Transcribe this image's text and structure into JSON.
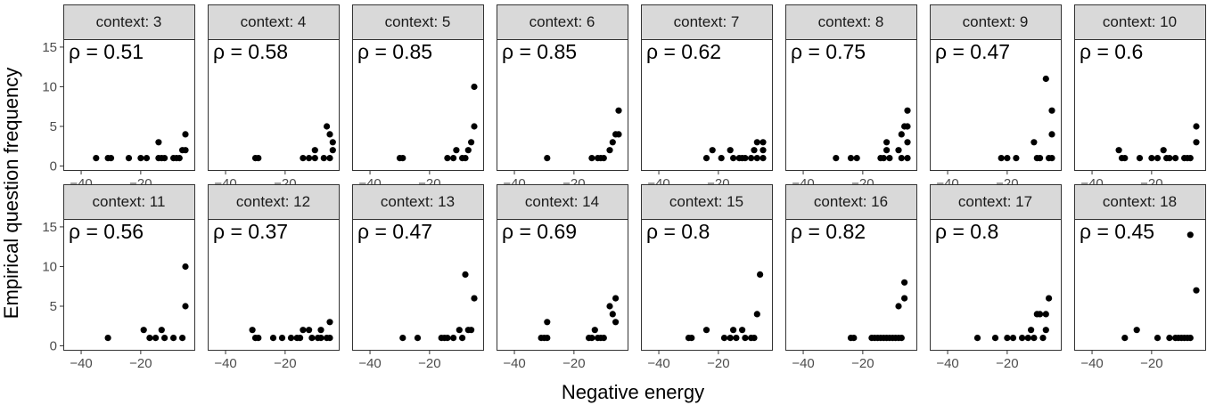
{
  "chart_data": {
    "type": "scatter",
    "facet_layout": "2 rows x 8 columns",
    "xlabel": "Negative energy",
    "ylabel": "Empirical question frequency",
    "xlim": [
      -46,
      -2
    ],
    "ylim": [
      -0.5,
      16
    ],
    "x_ticks": [
      -40,
      -20
    ],
    "x_tick_labels": [
      "−40",
      "−20"
    ],
    "y_ticks": [
      0,
      5,
      10,
      15
    ],
    "y_tick_labels": [
      "0",
      "5",
      "10",
      "15"
    ],
    "rho_prefix": "ρ = ",
    "point_color": "#000000",
    "strip_fill": "#d9d9d9",
    "panels": [
      {
        "strip": "context: 3",
        "rho": "0.51",
        "points": [
          [
            -35,
            1
          ],
          [
            -31,
            1
          ],
          [
            -30,
            1
          ],
          [
            -24,
            1
          ],
          [
            -20,
            1
          ],
          [
            -18,
            1
          ],
          [
            -14,
            3
          ],
          [
            -14,
            1
          ],
          [
            -13,
            1
          ],
          [
            -12,
            1
          ],
          [
            -9,
            1
          ],
          [
            -8,
            1
          ],
          [
            -7,
            1
          ],
          [
            -6,
            2
          ],
          [
            -5,
            2
          ],
          [
            -5,
            4
          ]
        ]
      },
      {
        "strip": "context: 4",
        "rho": "0.58",
        "points": [
          [
            -30,
            1
          ],
          [
            -29,
            1
          ],
          [
            -14,
            1
          ],
          [
            -12,
            1
          ],
          [
            -10,
            2
          ],
          [
            -10,
            1
          ],
          [
            -7,
            1
          ],
          [
            -6,
            5
          ],
          [
            -5,
            4
          ],
          [
            -4,
            3
          ],
          [
            -4,
            2
          ],
          [
            -5,
            1
          ]
        ]
      },
      {
        "strip": "context: 5",
        "rho": "0.85",
        "points": [
          [
            -30,
            1
          ],
          [
            -29,
            1
          ],
          [
            -14,
            1
          ],
          [
            -12,
            1
          ],
          [
            -11,
            2
          ],
          [
            -9,
            1
          ],
          [
            -8,
            1
          ],
          [
            -7,
            2
          ],
          [
            -6,
            3
          ],
          [
            -5,
            10
          ],
          [
            -5,
            5
          ]
        ]
      },
      {
        "strip": "context: 6",
        "rho": "0.85",
        "points": [
          [
            -29,
            1
          ],
          [
            -14,
            1
          ],
          [
            -12,
            1
          ],
          [
            -11,
            1
          ],
          [
            -10,
            1
          ],
          [
            -8,
            2
          ],
          [
            -7,
            3
          ],
          [
            -6,
            4
          ],
          [
            -5,
            7
          ],
          [
            -5,
            4
          ]
        ]
      },
      {
        "strip": "context: 7",
        "rho": "0.62",
        "points": [
          [
            -24,
            1
          ],
          [
            -22,
            2
          ],
          [
            -19,
            1
          ],
          [
            -16,
            2
          ],
          [
            -15,
            1
          ],
          [
            -13,
            1
          ],
          [
            -12,
            1
          ],
          [
            -11,
            1
          ],
          [
            -9,
            1
          ],
          [
            -8,
            2
          ],
          [
            -7,
            3
          ],
          [
            -7,
            1
          ],
          [
            -5,
            3
          ],
          [
            -5,
            2
          ],
          [
            -5,
            1
          ]
        ]
      },
      {
        "strip": "context: 8",
        "rho": "0.75",
        "points": [
          [
            -29,
            1
          ],
          [
            -24,
            1
          ],
          [
            -22,
            1
          ],
          [
            -14,
            1
          ],
          [
            -13,
            1
          ],
          [
            -12,
            2
          ],
          [
            -12,
            3
          ],
          [
            -11,
            1
          ],
          [
            -8,
            2
          ],
          [
            -7,
            1
          ],
          [
            -7,
            4
          ],
          [
            -6,
            5
          ],
          [
            -5,
            1
          ],
          [
            -5,
            3
          ],
          [
            -5,
            5
          ],
          [
            -5,
            7
          ]
        ]
      },
      {
        "strip": "context: 9",
        "rho": "0.47",
        "points": [
          [
            -22,
            1
          ],
          [
            -20,
            1
          ],
          [
            -17,
            1
          ],
          [
            -11,
            3
          ],
          [
            -10,
            1
          ],
          [
            -9,
            1
          ],
          [
            -7,
            11
          ],
          [
            -6,
            1
          ],
          [
            -5,
            1
          ],
          [
            -5,
            4
          ],
          [
            -5,
            7
          ]
        ]
      },
      {
        "strip": "context: 10",
        "rho": "0.6",
        "points": [
          [
            -31,
            2
          ],
          [
            -30,
            1
          ],
          [
            -29,
            1
          ],
          [
            -24,
            1
          ],
          [
            -20,
            1
          ],
          [
            -18,
            1
          ],
          [
            -16,
            2
          ],
          [
            -15,
            1
          ],
          [
            -14,
            1
          ],
          [
            -12,
            1
          ],
          [
            -9,
            1
          ],
          [
            -8,
            1
          ],
          [
            -7,
            1
          ],
          [
            -5,
            3
          ],
          [
            -5,
            5
          ]
        ]
      },
      {
        "strip": "context: 11",
        "rho": "0.56",
        "points": [
          [
            -31,
            1
          ],
          [
            -19,
            2
          ],
          [
            -17,
            1
          ],
          [
            -15,
            1
          ],
          [
            -13,
            2
          ],
          [
            -12,
            1
          ],
          [
            -9,
            1
          ],
          [
            -6,
            1
          ],
          [
            -5,
            5
          ],
          [
            -5,
            10
          ]
        ]
      },
      {
        "strip": "context: 12",
        "rho": "0.37",
        "points": [
          [
            -31,
            2
          ],
          [
            -30,
            1
          ],
          [
            -29,
            1
          ],
          [
            -24,
            1
          ],
          [
            -21,
            1
          ],
          [
            -18,
            1
          ],
          [
            -16,
            1
          ],
          [
            -15,
            1
          ],
          [
            -14,
            2
          ],
          [
            -12,
            2
          ],
          [
            -11,
            1
          ],
          [
            -9,
            1
          ],
          [
            -8,
            2
          ],
          [
            -8,
            1
          ],
          [
            -6,
            1
          ],
          [
            -5,
            3
          ],
          [
            -5,
            1
          ]
        ]
      },
      {
        "strip": "context: 13",
        "rho": "0.47",
        "points": [
          [
            -29,
            1
          ],
          [
            -24,
            1
          ],
          [
            -16,
            1
          ],
          [
            -15,
            1
          ],
          [
            -14,
            1
          ],
          [
            -12,
            1
          ],
          [
            -10,
            2
          ],
          [
            -9,
            1
          ],
          [
            -8,
            9
          ],
          [
            -7,
            2
          ],
          [
            -6,
            2
          ],
          [
            -5,
            6
          ]
        ]
      },
      {
        "strip": "context: 14",
        "rho": "0.69",
        "points": [
          [
            -31,
            1
          ],
          [
            -30,
            1
          ],
          [
            -29,
            3
          ],
          [
            -29,
            1
          ],
          [
            -15,
            1
          ],
          [
            -14,
            1
          ],
          [
            -13,
            2
          ],
          [
            -12,
            1
          ],
          [
            -11,
            1
          ],
          [
            -10,
            1
          ],
          [
            -8,
            5
          ],
          [
            -7,
            4
          ],
          [
            -6,
            3
          ],
          [
            -6,
            6
          ]
        ]
      },
      {
        "strip": "context: 15",
        "rho": "0.8",
        "points": [
          [
            -30,
            1
          ],
          [
            -29,
            1
          ],
          [
            -24,
            2
          ],
          [
            -18,
            1
          ],
          [
            -16,
            1
          ],
          [
            -15,
            2
          ],
          [
            -14,
            1
          ],
          [
            -12,
            2
          ],
          [
            -11,
            1
          ],
          [
            -9,
            1
          ],
          [
            -8,
            1
          ],
          [
            -7,
            4
          ],
          [
            -6,
            9
          ]
        ]
      },
      {
        "strip": "context: 16",
        "rho": "0.82",
        "points": [
          [
            -24,
            1
          ],
          [
            -23,
            1
          ],
          [
            -17,
            1
          ],
          [
            -16,
            1
          ],
          [
            -15,
            1
          ],
          [
            -14,
            1
          ],
          [
            -13,
            1
          ],
          [
            -12,
            1
          ],
          [
            -11,
            1
          ],
          [
            -10,
            1
          ],
          [
            -9,
            1
          ],
          [
            -8,
            1
          ],
          [
            -8,
            5
          ],
          [
            -7,
            1
          ],
          [
            -6,
            6
          ],
          [
            -6,
            8
          ]
        ]
      },
      {
        "strip": "context: 17",
        "rho": "0.8",
        "points": [
          [
            -30,
            1
          ],
          [
            -24,
            1
          ],
          [
            -20,
            1
          ],
          [
            -18,
            1
          ],
          [
            -15,
            1
          ],
          [
            -13,
            1
          ],
          [
            -12,
            2
          ],
          [
            -11,
            1
          ],
          [
            -10,
            4
          ],
          [
            -9,
            4
          ],
          [
            -8,
            1
          ],
          [
            -7,
            2
          ],
          [
            -7,
            4
          ],
          [
            -6,
            6
          ]
        ]
      },
      {
        "strip": "context: 18",
        "rho": "0.45",
        "points": [
          [
            -29,
            1
          ],
          [
            -25,
            2
          ],
          [
            -18,
            1
          ],
          [
            -14,
            1
          ],
          [
            -12,
            1
          ],
          [
            -11,
            1
          ],
          [
            -10,
            1
          ],
          [
            -9,
            1
          ],
          [
            -8,
            1
          ],
          [
            -7,
            14
          ],
          [
            -7,
            1
          ],
          [
            -5,
            7
          ]
        ]
      }
    ]
  }
}
